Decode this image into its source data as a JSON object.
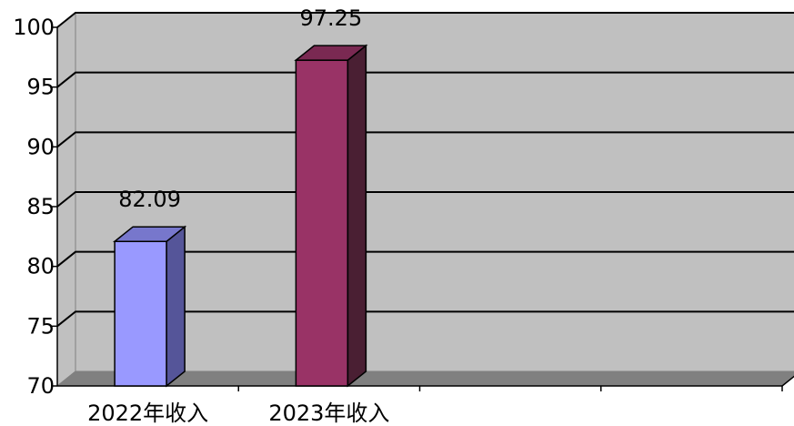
{
  "chart_data": {
    "type": "bar",
    "style": "3d-column",
    "categories": [
      "2022年收入",
      "2023年收入"
    ],
    "values": [
      82.09,
      97.25
    ],
    "data_labels": [
      "82.09",
      "97.25"
    ],
    "title": "",
    "xlabel": "",
    "ylabel": "",
    "ylim": [
      70,
      100
    ],
    "yticks": [
      "70",
      "75",
      "80",
      "85",
      "90",
      "95",
      "100"
    ],
    "slot_count": 4,
    "grid": true,
    "legend": "none",
    "colors": {
      "plot_background": "#c0c0c0",
      "floor": "#808080",
      "gridline": "#000000",
      "bars": [
        {
          "front": "#9999ff",
          "top": "#7777cc",
          "side": "#555599"
        },
        {
          "front": "#993366",
          "top": "#7a2952",
          "side": "#4a1f33"
        }
      ]
    }
  }
}
